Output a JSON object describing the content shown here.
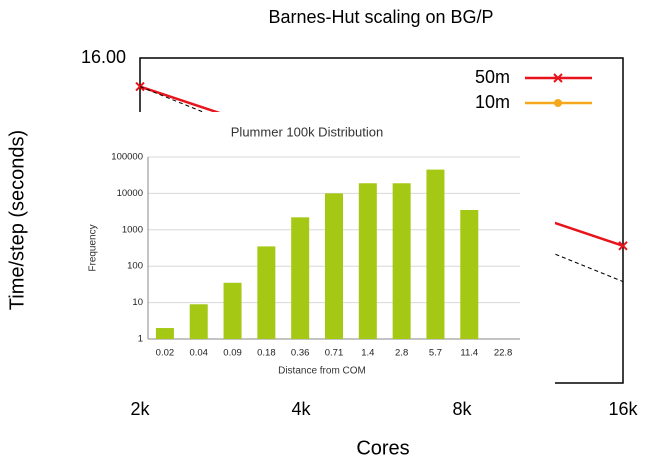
{
  "chart_data": [
    {
      "type": "line",
      "title": "Barnes-Hut scaling on BG/P",
      "xlabel": "Cores",
      "ylabel": "Time/step (seconds)",
      "categories": [
        "2k",
        "4k",
        "8k",
        "16k"
      ],
      "ylog": true,
      "ylim": [
        0.5,
        16
      ],
      "yticks": [
        {
          "value": 16,
          "label": "16.00"
        }
      ],
      "legend": "upper right",
      "series": [
        {
          "name": "50m",
          "color": "#e8141c",
          "marker": "x",
          "values": [
            11.8,
            6.67,
            3.84,
            2.16
          ]
        },
        {
          "name": "10m",
          "color": "#f5a81c",
          "marker": "o",
          "values": [
            null,
            null,
            null,
            null
          ]
        },
        {
          "color": "#000000",
          "dash": true,
          "values": [
            11.8,
            5.9,
            2.95,
            1.475
          ]
        }
      ]
    },
    {
      "type": "bar",
      "title": "Plummer 100k Distribution",
      "xlabel": "Distance from COM",
      "ylabel": "Frequency",
      "categories": [
        "0.02",
        "0.04",
        "0.09",
        "0.18",
        "0.36",
        "0.71",
        "1.4",
        "2.8",
        "5.7",
        "11.4",
        "22.8"
      ],
      "values": [
        2,
        9,
        35,
        350,
        2200,
        10000,
        19000,
        19000,
        45000,
        3500,
        null
      ],
      "color": "#a4c814",
      "ylog": true,
      "ylim": [
        1,
        100000
      ],
      "yticks": [
        1,
        10,
        100,
        1000,
        10000,
        100000
      ],
      "grid": true
    }
  ]
}
